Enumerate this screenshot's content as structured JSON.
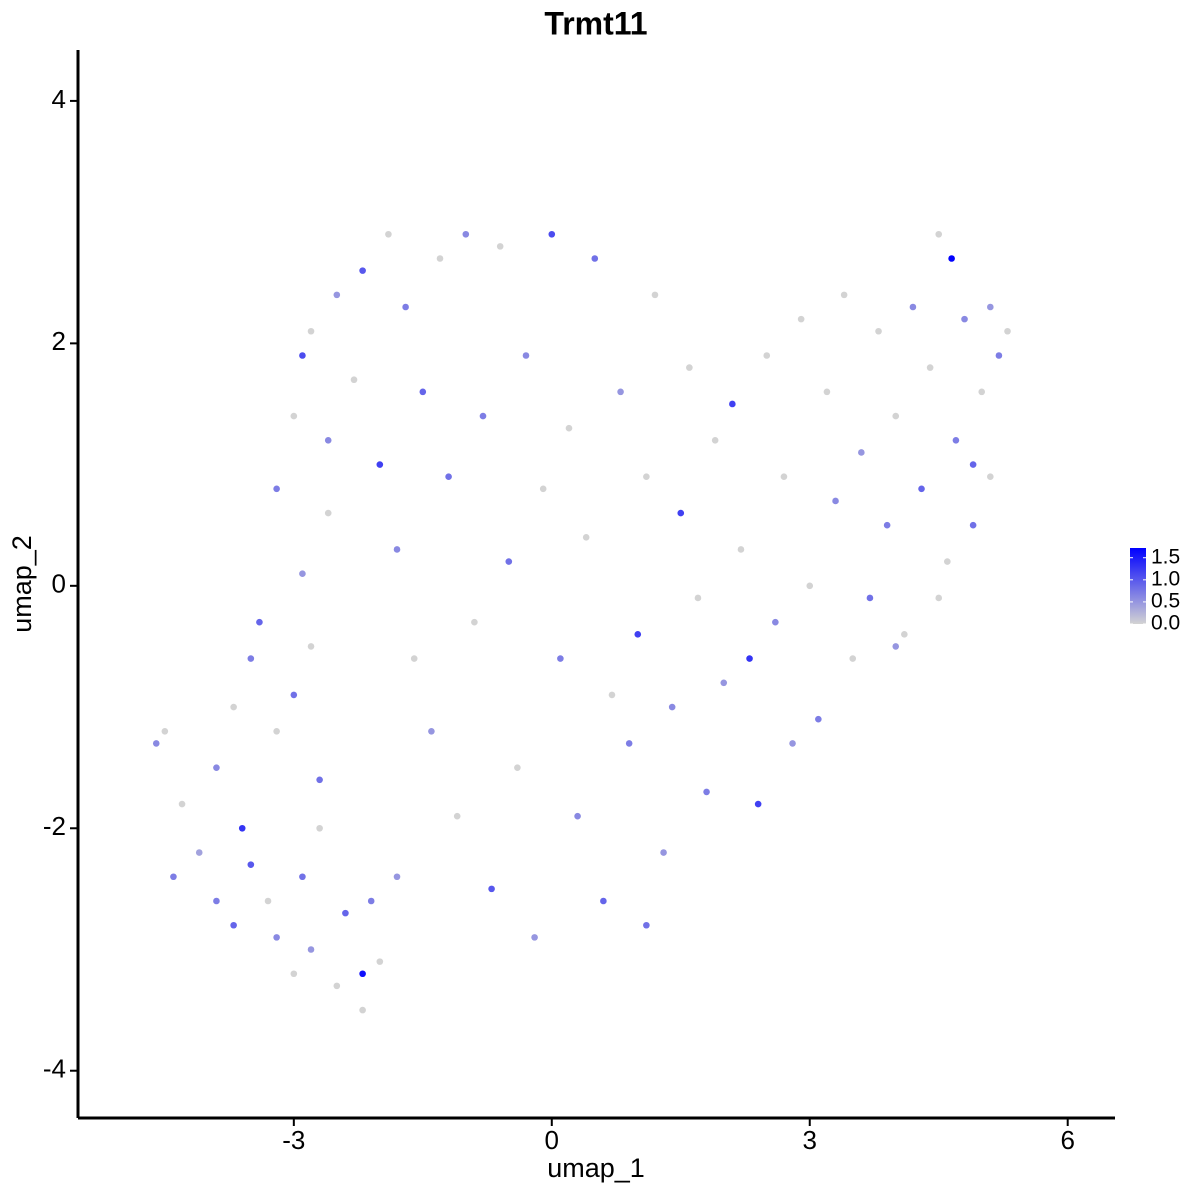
{
  "chart_data": {
    "type": "scatter",
    "title": "Trmt11",
    "x_label": "umap_1",
    "y_label": "umap_2",
    "xlim": [
      -5.51,
      6.55
    ],
    "ylim": [
      -4.39,
      4.42
    ],
    "xticks": [
      -3,
      0,
      3,
      6
    ],
    "yticks": [
      -4,
      -2,
      0,
      2,
      4
    ],
    "x": [
      -4.6,
      -4.5,
      -4.3,
      -4.1,
      -3.9,
      -3.7,
      -3.6,
      -3.5,
      -3.3,
      -3.2,
      -3.0,
      -2.9,
      -2.8,
      -2.7,
      -2.5,
      -2.4,
      -2.2,
      -2.1,
      -2.0,
      -1.8,
      -3.9,
      -3.7,
      -3.5,
      -3.4,
      -3.2,
      -3.0,
      -2.9,
      -2.8,
      -2.7,
      -2.6,
      -3.2,
      -3.0,
      -2.9,
      -2.8,
      -2.6,
      -2.5,
      -2.3,
      -2.2,
      -2.0,
      -1.9,
      -1.8,
      -1.7,
      -1.6,
      -1.5,
      -1.4,
      -1.3,
      -1.2,
      -1.1,
      -1.0,
      -0.9,
      -0.8,
      -0.7,
      -0.6,
      -0.5,
      -0.4,
      -0.3,
      -0.2,
      -0.1,
      0.0,
      0.1,
      0.2,
      0.3,
      0.4,
      0.5,
      0.6,
      0.7,
      0.8,
      0.9,
      1.0,
      1.1,
      1.2,
      1.3,
      1.4,
      1.5,
      1.6,
      1.7,
      1.8,
      1.9,
      2.0,
      2.1,
      2.2,
      2.3,
      2.4,
      2.5,
      2.6,
      2.7,
      2.8,
      2.9,
      3.0,
      3.1,
      3.2,
      3.3,
      3.4,
      3.5,
      3.6,
      3.7,
      3.8,
      3.9,
      4.0,
      4.1,
      4.2,
      4.3,
      4.4,
      4.5,
      4.6,
      4.65,
      4.7,
      4.8,
      4.9,
      5.0,
      5.1,
      5.2,
      5.3,
      5.1,
      4.9,
      4.5,
      4.0,
      -4.4,
      -2.2,
      1.1
    ],
    "values": [
      -1.3,
      -1.2,
      -1.8,
      -2.2,
      -2.6,
      -2.8,
      -2.0,
      -2.3,
      -2.6,
      -2.9,
      -3.2,
      -2.4,
      -3.0,
      -2.0,
      -3.3,
      -2.7,
      -3.2,
      -2.6,
      -3.1,
      -2.4,
      -1.5,
      -1.0,
      -0.6,
      -0.3,
      -1.2,
      -0.9,
      0.1,
      -0.5,
      -1.6,
      0.6,
      0.8,
      1.4,
      1.9,
      2.1,
      1.2,
      2.4,
      1.7,
      2.6,
      1.0,
      2.9,
      0.3,
      2.3,
      -0.6,
      1.6,
      -1.2,
      2.7,
      0.9,
      -1.9,
      2.9,
      -0.3,
      1.4,
      -2.5,
      2.8,
      0.2,
      -1.5,
      1.9,
      -2.9,
      0.8,
      2.9,
      -0.6,
      1.3,
      -1.9,
      0.4,
      2.7,
      -2.6,
      -0.9,
      1.6,
      -1.3,
      -0.4,
      0.9,
      2.4,
      -2.2,
      -1.0,
      0.6,
      1.8,
      -0.1,
      -1.7,
      1.2,
      -0.8,
      1.5,
      0.3,
      -0.6,
      -1.8,
      1.9,
      -0.3,
      0.9,
      -1.3,
      2.2,
      0.0,
      -1.1,
      1.6,
      0.7,
      2.4,
      -0.6,
      1.1,
      -0.1,
      2.1,
      0.5,
      1.4,
      -0.4,
      2.3,
      0.8,
      1.8,
      2.9,
      0.2,
      2.7,
      1.2,
      2.2,
      0.5,
      1.6,
      2.3,
      1.9,
      2.1,
      0.9,
      1.0,
      -0.1,
      -0.5,
      -2.4,
      -3.5,
      -2.8
    ],
    "expression": [
      0.6,
      0,
      0,
      0.4,
      0.7,
      0.9,
      1.3,
      1.0,
      0,
      0.6,
      0,
      0.8,
      0.5,
      0,
      0,
      0.9,
      1.6,
      0.7,
      0,
      0.5,
      0.6,
      0,
      0.7,
      0.9,
      0,
      0.8,
      0.5,
      0,
      0.8,
      0,
      0.7,
      0,
      1.1,
      0,
      0.6,
      0.5,
      0,
      1.0,
      1.2,
      0,
      0.6,
      0.7,
      0,
      0.9,
      0.5,
      0,
      0.8,
      0,
      0.6,
      0,
      0.7,
      1.0,
      0,
      0.8,
      0,
      0.6,
      0.5,
      0,
      1.1,
      0.7,
      0,
      0.6,
      0,
      0.8,
      0.9,
      0,
      0.5,
      0.7,
      1.2,
      0,
      0,
      0.5,
      0.6,
      1.2,
      0,
      0,
      0.7,
      0,
      0.5,
      1.2,
      0,
      1.3,
      1.2,
      0,
      0.6,
      0,
      0.5,
      0,
      0,
      0.7,
      0,
      0.6,
      0,
      0,
      0.5,
      0.8,
      0,
      0.7,
      0,
      0,
      0.6,
      0.9,
      0,
      0,
      0,
      1.7,
      0.7,
      0.6,
      0.8,
      0,
      0.5,
      0.7,
      0,
      0,
      0.9,
      0,
      0.5,
      0.7,
      0,
      0.8
    ],
    "colors": [
      "#d3d3d3",
      "#0000ff"
    ],
    "clim": [
      0,
      1.72
    ],
    "colorbar_ticks": [
      {
        "value": 0,
        "label": "0.0"
      },
      {
        "value": 0.5,
        "label": "0.5"
      },
      {
        "value": 1,
        "label": "1.0"
      },
      {
        "value": 1.5,
        "label": "1.5"
      }
    ]
  }
}
